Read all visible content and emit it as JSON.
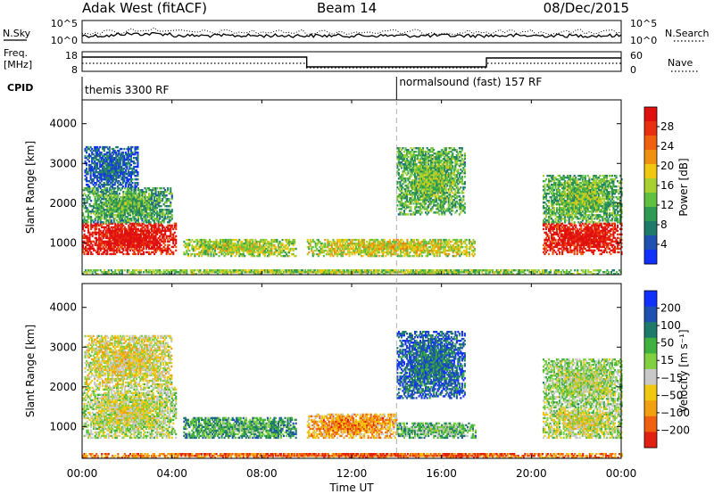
{
  "header": {
    "station": "Adak West (fitACF)",
    "beam": "Beam 14",
    "date": "08/Dec/2015"
  },
  "side_labels": {
    "nsky": "N.Sky",
    "nsearch": "N.Search",
    "freq_line1": "Freq.",
    "freq_line2": "[MHz]",
    "nave": "Nave",
    "cpid": "CPID"
  },
  "noise_panel": {
    "left_ticks": [
      "10^5",
      "10^0"
    ],
    "right_ticks": [
      "10^5",
      "10^0"
    ]
  },
  "freq_panel": {
    "left_ticks": [
      "18",
      "8"
    ],
    "right_ticks": [
      "60",
      "0"
    ]
  },
  "cpid": {
    "segments": [
      {
        "label": "themis 3300 RF",
        "start_hour": 0
      },
      {
        "label": "normalsound (fast) 157 RF",
        "start_hour": 14
      }
    ]
  },
  "time_axis": {
    "label": "Time UT",
    "ticks": [
      "00:00",
      "04:00",
      "08:00",
      "12:00",
      "16:00",
      "20:00",
      "00:00"
    ]
  },
  "chart_data": [
    {
      "type": "heatmap",
      "name": "power",
      "xlabel": "Time UT",
      "ylabel": "Slant Range [km]",
      "xlim": [
        0,
        24
      ],
      "ylim": [
        200,
        4600
      ],
      "yticks": [
        "1000",
        "2000",
        "3000",
        "4000"
      ],
      "colorbar": {
        "label": "Power [dB]",
        "ticks": [
          "4",
          "8",
          "12",
          "16",
          "20",
          "24",
          "28"
        ],
        "colors": [
          "#1030ff",
          "#2050b0",
          "#207a6a",
          "#2e9a52",
          "#60c040",
          "#a8d030",
          "#f0c810",
          "#f09010",
          "#f06010",
          "#e83010",
          "#e01010"
        ]
      },
      "regions": [
        {
          "t": [
            0.0,
            4.2
          ],
          "r": [
            700,
            1500
          ],
          "level": 0.92
        },
        {
          "t": [
            0.0,
            4.0
          ],
          "r": [
            1500,
            2400
          ],
          "level": 0.3
        },
        {
          "t": [
            0.1,
            2.5
          ],
          "r": [
            2400,
            3400
          ],
          "level": 0.12
        },
        {
          "t": [
            4.5,
            9.5
          ],
          "r": [
            650,
            1100
          ],
          "level": 0.45
        },
        {
          "t": [
            10.0,
            17.5
          ],
          "r": [
            650,
            1100
          ],
          "level": 0.5
        },
        {
          "t": [
            14.0,
            17.0
          ],
          "r": [
            1700,
            3400
          ],
          "level": 0.35
        },
        {
          "t": [
            20.5,
            24.0
          ],
          "r": [
            700,
            1500
          ],
          "level": 0.92
        },
        {
          "t": [
            20.5,
            24.0
          ],
          "r": [
            1500,
            2700
          ],
          "level": 0.35
        },
        {
          "t": [
            0.0,
            24.0
          ],
          "r": [
            200,
            320
          ],
          "level": 0.4
        }
      ]
    },
    {
      "type": "heatmap",
      "name": "velocity",
      "xlabel": "Time UT",
      "ylabel": "Slant Range [km]",
      "xlim": [
        0,
        24
      ],
      "ylim": [
        200,
        4600
      ],
      "yticks": [
        "1000",
        "2000",
        "3000",
        "4000"
      ],
      "colorbar": {
        "label": "Velocity [m s⁻¹]",
        "ticks": [
          "200",
          "100",
          "50",
          "15",
          "−15",
          "−50",
          "−100",
          "−200"
        ],
        "colors": [
          "#1030ff",
          "#2050b0",
          "#207a6a",
          "#40b040",
          "#80d040",
          "#c8c8c8",
          "#f0c810",
          "#f0a010",
          "#f06010",
          "#e02010"
        ]
      },
      "regions": [
        {
          "t": [
            0.0,
            4.2
          ],
          "r": [
            700,
            2000
          ],
          "level": 0.5
        },
        {
          "t": [
            0.1,
            4.0
          ],
          "r": [
            2000,
            3300
          ],
          "level": 0.55
        },
        {
          "t": [
            4.5,
            9.5
          ],
          "r": [
            700,
            1200
          ],
          "level": 0.3
        },
        {
          "t": [
            10.0,
            14.0
          ],
          "r": [
            700,
            1300
          ],
          "level": 0.7
        },
        {
          "t": [
            14.0,
            17.5
          ],
          "r": [
            700,
            1100
          ],
          "level": 0.35
        },
        {
          "t": [
            14.0,
            17.0
          ],
          "r": [
            1700,
            3400
          ],
          "level": 0.15
        },
        {
          "t": [
            20.5,
            24.0
          ],
          "r": [
            700,
            1500
          ],
          "level": 0.5
        },
        {
          "t": [
            20.5,
            24.0
          ],
          "r": [
            1500,
            2700
          ],
          "level": 0.45
        },
        {
          "t": [
            0.0,
            24.0
          ],
          "r": [
            200,
            320
          ],
          "level": 0.8
        }
      ]
    }
  ]
}
